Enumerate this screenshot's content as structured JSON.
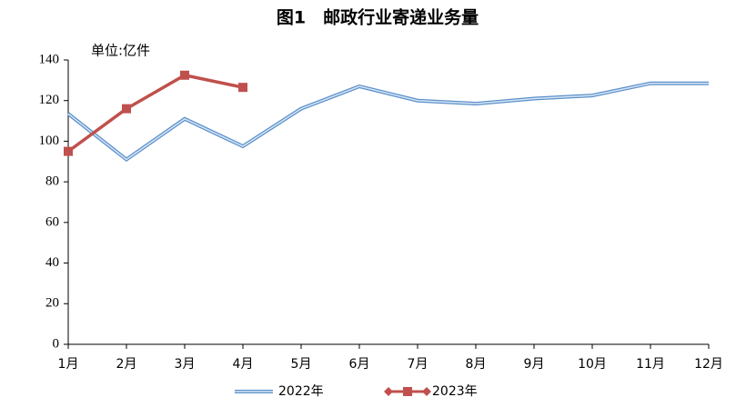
{
  "chart_data": {
    "type": "line",
    "title": "图1　邮政行业寄递业务量",
    "unit_label": "单位:亿件",
    "categories": [
      "1月",
      "2月",
      "3月",
      "4月",
      "5月",
      "6月",
      "7月",
      "8月",
      "9月",
      "10月",
      "11月",
      "12月"
    ],
    "series": [
      {
        "name": "2022年",
        "color": "#5b8fc9",
        "values": [
          113.5,
          91,
          111,
          97.5,
          116,
          127,
          120,
          118.5,
          121,
          122.5,
          128.5,
          128.5
        ]
      },
      {
        "name": "2023年",
        "color": "#c0504d",
        "values": [
          95,
          116,
          132.5,
          126.5,
          null,
          null,
          null,
          null,
          null,
          null,
          null,
          null
        ]
      }
    ],
    "ylim": [
      0,
      140
    ],
    "yticks": [
      0,
      20,
      40,
      60,
      80,
      100,
      120,
      140
    ],
    "grid": false
  }
}
